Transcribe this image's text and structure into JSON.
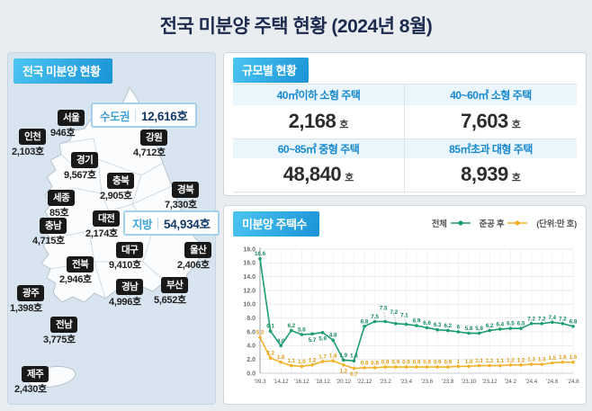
{
  "title": "전국 미분양 주택 현황 (2024년 8월)",
  "colors": {
    "accent_blue": "#1a93d6",
    "total_green": "#1b9e6d",
    "completed_orange": "#f2b32c",
    "navy": "#123a66"
  },
  "map_panel": {
    "header": "전국 미분양 현황",
    "callouts": [
      {
        "label": "수도권",
        "value": "12,616호"
      },
      {
        "label": "지방",
        "value": "54,934호"
      }
    ],
    "regions": [
      {
        "name": "서울",
        "value": "946호"
      },
      {
        "name": "인천",
        "value": "2,103호"
      },
      {
        "name": "경기",
        "value": "9,567호"
      },
      {
        "name": "강원",
        "value": "4,712호"
      },
      {
        "name": "충북",
        "value": "2,905호"
      },
      {
        "name": "경북",
        "value": "7,330호"
      },
      {
        "name": "세종",
        "value": "85호"
      },
      {
        "name": "대전",
        "value": "2,174호"
      },
      {
        "name": "충남",
        "value": "4,715호"
      },
      {
        "name": "대구",
        "value": "9,410호"
      },
      {
        "name": "울산",
        "value": "2,406호"
      },
      {
        "name": "전북",
        "value": "2,946호"
      },
      {
        "name": "경남",
        "value": "4,996호"
      },
      {
        "name": "부산",
        "value": "5,652호"
      },
      {
        "name": "광주",
        "value": "1,398호"
      },
      {
        "name": "전남",
        "value": "3,775호"
      },
      {
        "name": "제주",
        "value": "2,430호"
      }
    ]
  },
  "scale_panel": {
    "header": "규모별 현황",
    "cells": [
      {
        "label": "40㎡이하 소형 주택",
        "value": "2,168",
        "unit": "호"
      },
      {
        "label": "40~60㎡ 소형 주택",
        "value": "7,603",
        "unit": "호"
      },
      {
        "label": "60~85㎡ 중형 주택",
        "value": "48,840",
        "unit": "호"
      },
      {
        "label": "85㎡초과 대형 주택",
        "value": "8,939",
        "unit": "호"
      }
    ]
  },
  "chart_panel": {
    "header": "미분양 주택수",
    "legend": [
      {
        "label": "전체",
        "color": "#1b9e6d"
      },
      {
        "label": "준공 후",
        "color": "#f2b32c"
      }
    ],
    "unit_note": "(단위:만 호)"
  },
  "chart_data": {
    "type": "line",
    "x": [
      "'09.3",
      "'13.12",
      "'14.12",
      "'15.12",
      "'16.12",
      "'17.12",
      "'18.12",
      "'19.12",
      "'20.12",
      "'21.12",
      "'22.12",
      "'23.1",
      "'23.2",
      "'23.3",
      "'23.4",
      "'23.5",
      "'23.6",
      "'23.7",
      "'23.8",
      "'23.9",
      "'23.10",
      "'23.11",
      "'23.12",
      "'24.1",
      "'24.2",
      "'24.3",
      "'24.4",
      "'24.5",
      "'24.6",
      "'24.7",
      "'24.8"
    ],
    "tick_labels": [
      "'09.3",
      "'14.12",
      "'16.12",
      "'18.12",
      "'20.12",
      "'22.12",
      "'23.2",
      "'23.4",
      "'23.6",
      "'23.8",
      "'23.10",
      "'23.12",
      "'24.2",
      "'24.4",
      "'24.6",
      "'24.8"
    ],
    "series": [
      {
        "name": "전체",
        "color": "#1b9e6d",
        "values": [
          16.6,
          6.1,
          4.0,
          6.2,
          5.6,
          5.7,
          5.9,
          4.8,
          1.9,
          1.8,
          6.8,
          7.5,
          7.5,
          7.2,
          7.1,
          6.9,
          6.6,
          6.3,
          6.2,
          6.0,
          5.8,
          5.8,
          6.2,
          6.4,
          6.5,
          6.5,
          7.2,
          7.2,
          7.4,
          7.2,
          6.8
        ],
        "labels": [
          "16.6",
          "6.1",
          "4.0",
          "6.2",
          "5.6",
          "5.7",
          "5.9",
          "4.8",
          "1.9",
          "1.8",
          "6.8",
          "7.5",
          "7.5",
          "7.2",
          "7.1",
          "6.9",
          "6.6",
          "6.3",
          "6.2",
          "6",
          "5.8",
          "5.8",
          "6.2",
          "6.4",
          "6.5",
          "6.5",
          "7.2",
          "7.2",
          "7.4",
          "7.2",
          "6.8"
        ]
      },
      {
        "name": "준공 후",
        "color": "#f2b32c",
        "values": [
          5.2,
          2.2,
          1.6,
          1.1,
          1.0,
          1.2,
          1.7,
          1.8,
          1.2,
          0.7,
          0.8,
          0.8,
          0.9,
          0.9,
          0.9,
          0.9,
          0.9,
          0.9,
          0.9,
          1.0,
          1.0,
          1.1,
          1.1,
          1.1,
          1.2,
          1.2,
          1.3,
          1.3,
          1.5,
          1.6,
          1.6
        ],
        "labels": [
          "5.2",
          "2.2",
          "1.6",
          "1.1",
          "1.0",
          "1.2",
          "1.7",
          "1.8",
          "1.2",
          "0.7",
          "0.8",
          "0.8",
          "0.9",
          "0.9",
          "0.9",
          "0.9",
          "0.9",
          "0.9",
          "0.9",
          "1",
          "1.0",
          "1.1",
          "1.1",
          "1.1",
          "1.2",
          "1.2",
          "1.3",
          "1.3",
          "1.5",
          "1.6",
          "1.6"
        ]
      }
    ],
    "ylim": [
      0,
      18
    ],
    "ytick_step": 2,
    "grid": true,
    "legend_position": "top-right"
  }
}
